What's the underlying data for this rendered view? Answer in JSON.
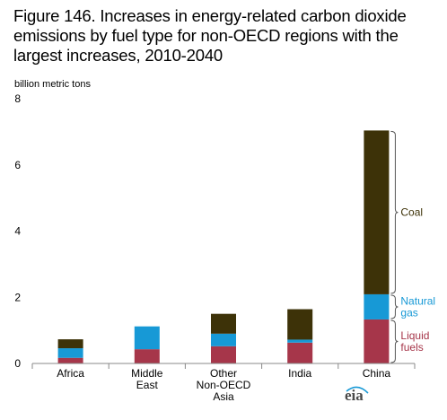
{
  "chart_data": {
    "type": "bar",
    "stacked": true,
    "title": "Figure 146. Increases in energy-related carbon dioxide emissions by fuel type for non-OECD regions with the largest increases, 2010-2040",
    "ylabel": "billion metric tons",
    "ylim": [
      0,
      8
    ],
    "yticks": [
      0,
      2,
      4,
      6,
      8
    ],
    "grid": false,
    "categories": [
      [
        "Africa"
      ],
      [
        "Middle",
        "East"
      ],
      [
        "Other",
        "Non-OECD",
        "Asia"
      ],
      [
        "India"
      ],
      [
        "China"
      ]
    ],
    "series": [
      {
        "name": "Liquid fuels",
        "label_lines": [
          "Liquid",
          "fuels"
        ],
        "color": "#a6364a",
        "values": [
          0.17,
          0.43,
          0.52,
          0.63,
          1.33
        ]
      },
      {
        "name": "Natural gas",
        "label_lines": [
          "Natural",
          "gas"
        ],
        "color": "#1799d6",
        "values": [
          0.29,
          0.69,
          0.38,
          0.09,
          0.76
        ]
      },
      {
        "name": "Coal",
        "label_lines": [
          "Coal"
        ],
        "color": "#3d3208",
        "values": [
          0.27,
          0.0,
          0.6,
          0.92,
          4.95
        ]
      }
    ],
    "legend": "inline labels with braces beside the China bar"
  },
  "logo": {
    "text": "eia"
  }
}
